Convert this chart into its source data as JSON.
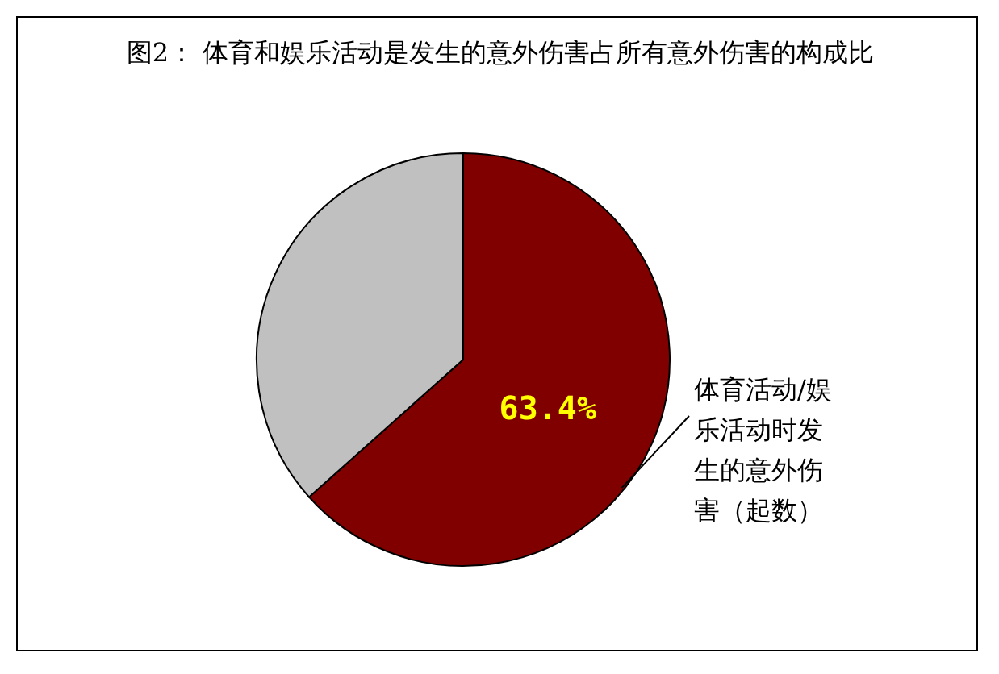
{
  "chart_data": {
    "type": "pie",
    "title": "图2： 体育和娱乐活动是发生的意外伤害占所有意外伤害的构成比",
    "categories": [
      "体育活动/娱乐活动时发生的意外伤害（起数）",
      null
    ],
    "values": [
      63.4,
      36.6
    ],
    "colors": [
      "#800000",
      "#c0c0c0"
    ],
    "value_labels": [
      "63.4%",
      null
    ]
  }
}
